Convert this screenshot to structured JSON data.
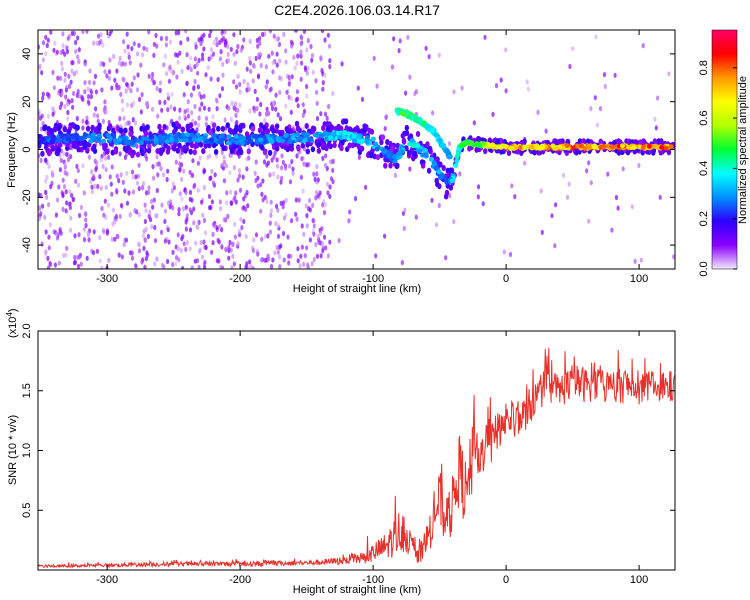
{
  "figure": {
    "title": "C2E4.2026.106.03.14.R17"
  },
  "chart_data": [
    {
      "type": "heatmap",
      "xlabel": "Height of straight line (km)",
      "ylabel": "Frequency (Hz)",
      "xlim": [
        -352,
        127
      ],
      "ylim": [
        -50,
        50
      ],
      "xticks": [
        -300,
        -200,
        -100,
        0,
        100
      ],
      "yticks": [
        -40,
        -20,
        0,
        20,
        40
      ],
      "grid": false,
      "ridge": {
        "x": [
          -352,
          -300,
          -280,
          -250,
          -200,
          -150,
          -120,
          -100,
          -90,
          -82,
          -75,
          -60,
          -50,
          -45,
          -40,
          -35,
          -30,
          -20,
          0,
          50,
          127
        ],
        "y": [
          4,
          5,
          3,
          5,
          4,
          5,
          6,
          3,
          -2,
          -4,
          4,
          -2,
          -10,
          -14,
          -12,
          1,
          3,
          2,
          1,
          1,
          1
        ],
        "amplitude": [
          0.25,
          0.3,
          0.28,
          0.3,
          0.3,
          0.32,
          0.4,
          0.35,
          0.3,
          0.3,
          0.42,
          0.35,
          0.32,
          0.3,
          0.35,
          0.45,
          0.55,
          0.6,
          0.75,
          0.85,
          0.85
        ]
      },
      "upper_branch": {
        "x": [
          -82,
          -75,
          -65,
          -55,
          -48,
          -42
        ],
        "y": [
          16,
          15,
          12,
          8,
          2,
          -3
        ],
        "amplitude": [
          0.45,
          0.5,
          0.45,
          0.4,
          0.35,
          0.3
        ]
      },
      "colorbar": {
        "label": "Normalized spectral amplitude",
        "range": [
          0.0,
          0.95
        ],
        "ticks": [
          "0.0",
          "0.2",
          "0.4",
          "0.6",
          "0.8"
        ],
        "tick_values": [
          0.0,
          0.2,
          0.4,
          0.6,
          0.8
        ],
        "colors": [
          "#f3e8fb",
          "#8a00ff",
          "#2d00ff",
          "#0090ff",
          "#00ffff",
          "#00ff33",
          "#b0ff00",
          "#ffff00",
          "#ff9900",
          "#ff0000",
          "#ff0066"
        ]
      }
    },
    {
      "type": "line",
      "xlabel": "Height of straight line (km)",
      "ylabel": "SNR (10 * v/v)",
      "y_multiplier": "(x10",
      "y_multiplier_exp": "4",
      "xlim": [
        -352,
        127
      ],
      "ylim": [
        0,
        2.0
      ],
      "xticks": [
        -300,
        -200,
        -100,
        0,
        100
      ],
      "yticks": [
        0.5,
        1.0,
        1.5,
        2.0
      ],
      "ytick_labels": [
        "0.5",
        "1.0",
        "1.5",
        "2.0"
      ],
      "grid": false,
      "series": [
        {
          "color": "#e8302a",
          "x": [
            -352,
            -300,
            -250,
            -200,
            -150,
            -130,
            -110,
            -100,
            -90,
            -82,
            -78,
            -72,
            -65,
            -58,
            -50,
            -45,
            -40,
            -35,
            -30,
            -25,
            -20,
            -15,
            -10,
            -5,
            0,
            10,
            20,
            30,
            40,
            50,
            60,
            70,
            80,
            90,
            100,
            110,
            127
          ],
          "y": [
            0.03,
            0.04,
            0.05,
            0.05,
            0.06,
            0.07,
            0.1,
            0.14,
            0.2,
            0.3,
            0.35,
            0.22,
            0.12,
            0.3,
            0.6,
            0.38,
            0.55,
            0.85,
            0.6,
            0.95,
            0.85,
            1.15,
            1.05,
            1.2,
            1.25,
            1.25,
            1.4,
            1.55,
            1.5,
            1.58,
            1.55,
            1.57,
            1.52,
            1.55,
            1.5,
            1.55,
            1.52
          ],
          "noise": [
            0.01,
            0.015,
            0.02,
            0.02,
            0.02,
            0.03,
            0.05,
            0.08,
            0.12,
            0.18,
            0.2,
            0.1,
            0.08,
            0.15,
            0.25,
            0.2,
            0.25,
            0.3,
            0.3,
            0.3,
            0.25,
            0.2,
            0.2,
            0.18,
            0.15,
            0.15,
            0.15,
            0.15,
            0.15,
            0.15,
            0.15,
            0.15,
            0.15,
            0.15,
            0.12,
            0.12,
            0.12
          ]
        }
      ]
    }
  ]
}
